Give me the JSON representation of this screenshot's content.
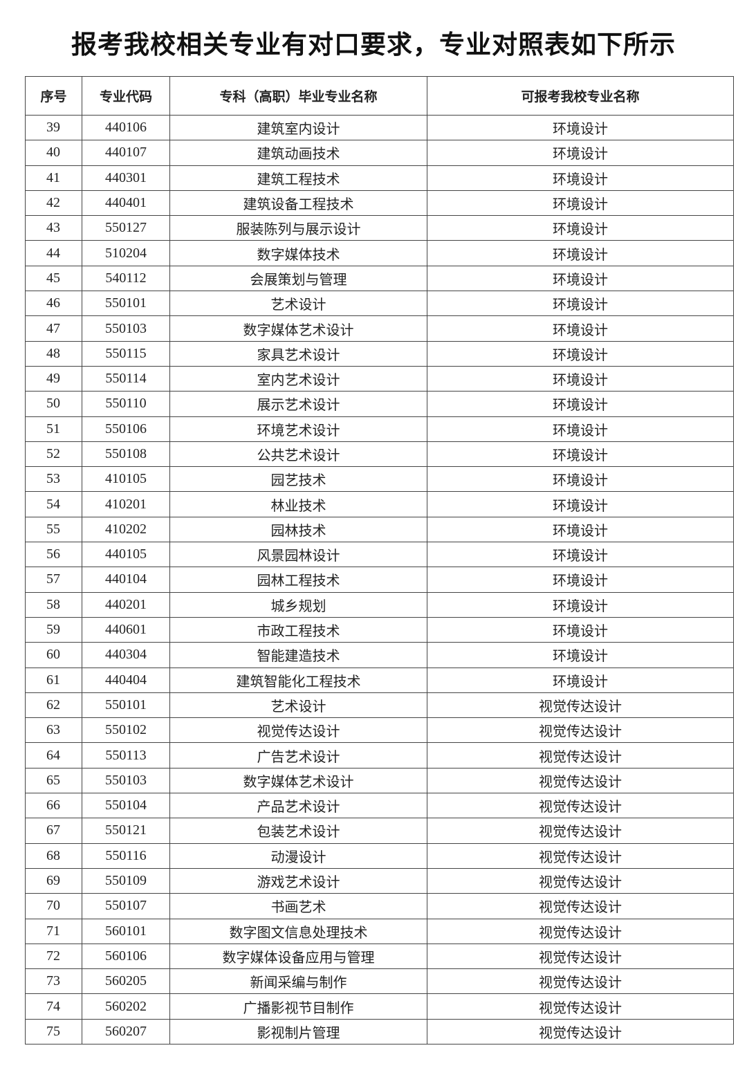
{
  "title": "报考我校相关专业有对口要求，专业对照表如下所示",
  "table": {
    "headers": [
      "序号",
      "专业代码",
      "专科（高职）毕业专业名称",
      "可报考我校专业名称"
    ],
    "rows": [
      [
        "39",
        "440106",
        "建筑室内设计",
        "环境设计"
      ],
      [
        "40",
        "440107",
        "建筑动画技术",
        "环境设计"
      ],
      [
        "41",
        "440301",
        "建筑工程技术",
        "环境设计"
      ],
      [
        "42",
        "440401",
        "建筑设备工程技术",
        "环境设计"
      ],
      [
        "43",
        "550127",
        "服装陈列与展示设计",
        "环境设计"
      ],
      [
        "44",
        "510204",
        "数字媒体技术",
        "环境设计"
      ],
      [
        "45",
        "540112",
        "会展策划与管理",
        "环境设计"
      ],
      [
        "46",
        "550101",
        "艺术设计",
        "环境设计"
      ],
      [
        "47",
        "550103",
        "数字媒体艺术设计",
        "环境设计"
      ],
      [
        "48",
        "550115",
        "家具艺术设计",
        "环境设计"
      ],
      [
        "49",
        "550114",
        "室内艺术设计",
        "环境设计"
      ],
      [
        "50",
        "550110",
        "展示艺术设计",
        "环境设计"
      ],
      [
        "51",
        "550106",
        "环境艺术设计",
        "环境设计"
      ],
      [
        "52",
        "550108",
        "公共艺术设计",
        "环境设计"
      ],
      [
        "53",
        "410105",
        "园艺技术",
        "环境设计"
      ],
      [
        "54",
        "410201",
        "林业技术",
        "环境设计"
      ],
      [
        "55",
        "410202",
        "园林技术",
        "环境设计"
      ],
      [
        "56",
        "440105",
        "风景园林设计",
        "环境设计"
      ],
      [
        "57",
        "440104",
        "园林工程技术",
        "环境设计"
      ],
      [
        "58",
        "440201",
        "城乡规划",
        "环境设计"
      ],
      [
        "59",
        "440601",
        "市政工程技术",
        "环境设计"
      ],
      [
        "60",
        "440304",
        "智能建造技术",
        "环境设计"
      ],
      [
        "61",
        "440404",
        "建筑智能化工程技术",
        "环境设计"
      ],
      [
        "62",
        "550101",
        "艺术设计",
        "视觉传达设计"
      ],
      [
        "63",
        "550102",
        "视觉传达设计",
        "视觉传达设计"
      ],
      [
        "64",
        "550113",
        "广告艺术设计",
        "视觉传达设计"
      ],
      [
        "65",
        "550103",
        "数字媒体艺术设计",
        "视觉传达设计"
      ],
      [
        "66",
        "550104",
        "产品艺术设计",
        "视觉传达设计"
      ],
      [
        "67",
        "550121",
        "包装艺术设计",
        "视觉传达设计"
      ],
      [
        "68",
        "550116",
        "动漫设计",
        "视觉传达设计"
      ],
      [
        "69",
        "550109",
        "游戏艺术设计",
        "视觉传达设计"
      ],
      [
        "70",
        "550107",
        "书画艺术",
        "视觉传达设计"
      ],
      [
        "71",
        "560101",
        "数字图文信息处理技术",
        "视觉传达设计"
      ],
      [
        "72",
        "560106",
        "数字媒体设备应用与管理",
        "视觉传达设计"
      ],
      [
        "73",
        "560205",
        "新闻采编与制作",
        "视觉传达设计"
      ],
      [
        "74",
        "560202",
        "广播影视节目制作",
        "视觉传达设计"
      ],
      [
        "75",
        "560207",
        "影视制片管理",
        "视觉传达设计"
      ]
    ]
  }
}
